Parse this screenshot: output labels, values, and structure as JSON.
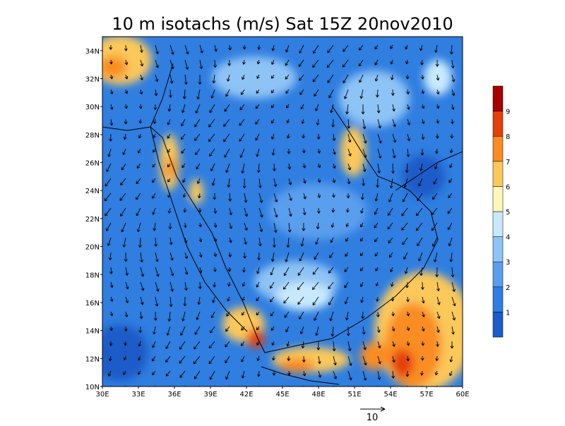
{
  "title": "10 m isotachs (m/s) Sat 15Z 20nov2010",
  "lat_labels": [
    "10N",
    "12N",
    "14N",
    "16N",
    "18N",
    "20N",
    "22N",
    "24N",
    "26N",
    "28N",
    "30N",
    "32N",
    "34N"
  ],
  "lon_labels": [
    "30E",
    "33E",
    "36E",
    "39E",
    "42E",
    "45E",
    "48E",
    "51E",
    "54E",
    "57E",
    "60E"
  ],
  "colorbar": {
    "colors": [
      "#1a5cc8",
      "#2f7ee0",
      "#5a9eee",
      "#8ec3f5",
      "#c8e9fb",
      "#fdf7b8",
      "#fbc85a",
      "#f98c22",
      "#e5400c",
      "#a80000"
    ],
    "labels": [
      1,
      2,
      3,
      4,
      5,
      6,
      7,
      8,
      9
    ]
  },
  "vector_reference": "10"
}
